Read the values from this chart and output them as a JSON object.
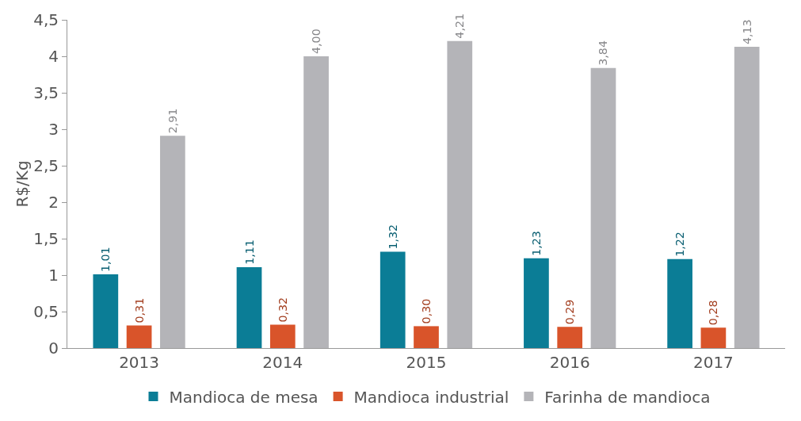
{
  "chart_data": {
    "type": "bar",
    "ylabel": "R$/Kg",
    "categories": [
      "2013",
      "2014",
      "2015",
      "2016",
      "2017"
    ],
    "series": [
      {
        "name": "Mandioca de mesa",
        "color": "#0b7d96",
        "values": [
          1.01,
          1.11,
          1.32,
          1.23,
          1.22
        ],
        "value_labels": [
          "1,01",
          "1,11",
          "1,32",
          "1,23",
          "1,22"
        ]
      },
      {
        "name": "Mandioca industrial",
        "color": "#d9542a",
        "values": [
          0.31,
          0.32,
          0.3,
          0.29,
          0.28
        ],
        "value_labels": [
          "0,31",
          "0,32",
          "0,30",
          "0,29",
          "0,28"
        ]
      },
      {
        "name": "Farinha de mandioca",
        "color": "#b4b4b8",
        "values": [
          2.91,
          4.0,
          4.21,
          3.84,
          4.13
        ],
        "value_labels": [
          "2,91",
          "4,00",
          "4,21",
          "3,84",
          "4,13"
        ]
      }
    ],
    "ylim": [
      0,
      4.5
    ],
    "yticks": [
      0,
      {
        "value": 0.5,
        "label": "0,5"
      },
      1,
      {
        "value": 1.5,
        "label": "1,5"
      },
      2,
      {
        "value": 2.5,
        "label": "2,5"
      },
      3,
      {
        "value": 3.5,
        "label": "3,5"
      },
      4,
      {
        "value": 4.5,
        "label": "4,5"
      }
    ],
    "grid": false,
    "legend": "bottom"
  }
}
